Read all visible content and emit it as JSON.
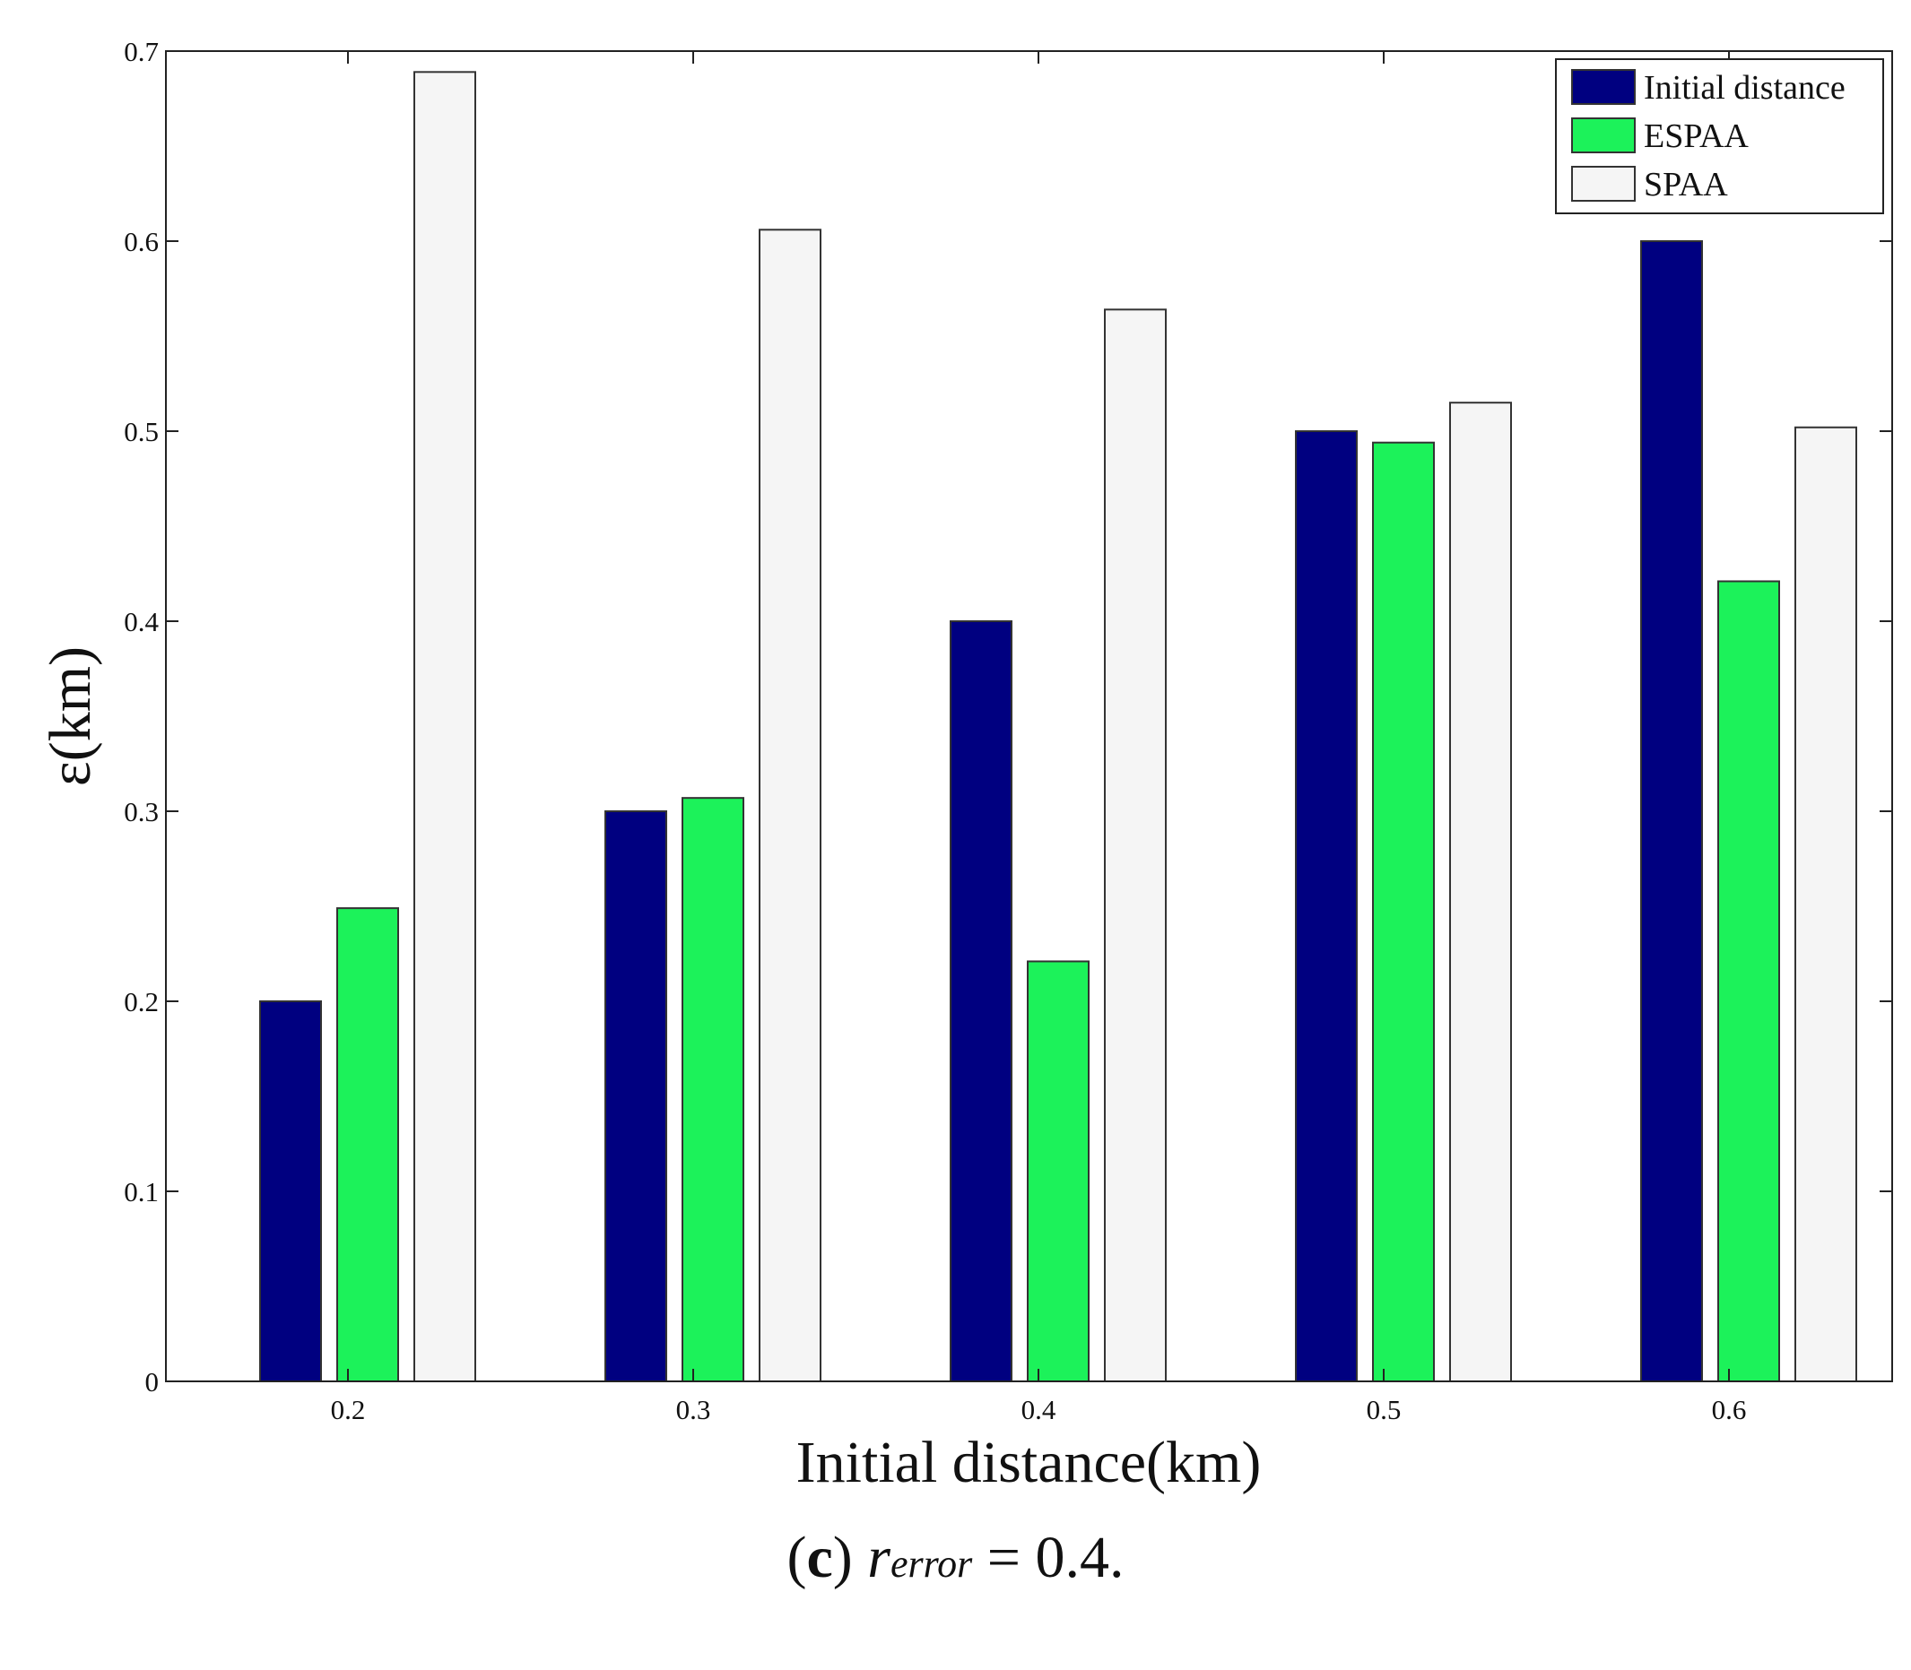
{
  "chart_data": {
    "type": "bar",
    "title": "",
    "xlabel": "Initial distance(km)",
    "ylabel": "ε(km)",
    "categories": [
      "0.2",
      "0.3",
      "0.4",
      "0.5",
      "0.6"
    ],
    "ylim": [
      0,
      0.7
    ],
    "yticks": [
      "0",
      "0.1",
      "0.2",
      "0.3",
      "0.4",
      "0.5",
      "0.6",
      "0.7"
    ],
    "grid": false,
    "legend_position": "top-right",
    "series": [
      {
        "name": "Initial distance",
        "color": "#000080",
        "values": [
          0.2,
          0.3,
          0.4,
          0.5,
          0.6
        ]
      },
      {
        "name": "ESPAA",
        "color": "#1cf25a",
        "values": [
          0.249,
          0.307,
          0.221,
          0.494,
          0.421
        ]
      },
      {
        "name": "SPAA",
        "color": "#f5f5f5",
        "values": [
          0.689,
          0.606,
          0.564,
          0.515,
          0.502
        ]
      }
    ]
  },
  "caption": {
    "letter": "c",
    "symbol": "r",
    "subscript": "error",
    "rest": " = 0.4."
  }
}
